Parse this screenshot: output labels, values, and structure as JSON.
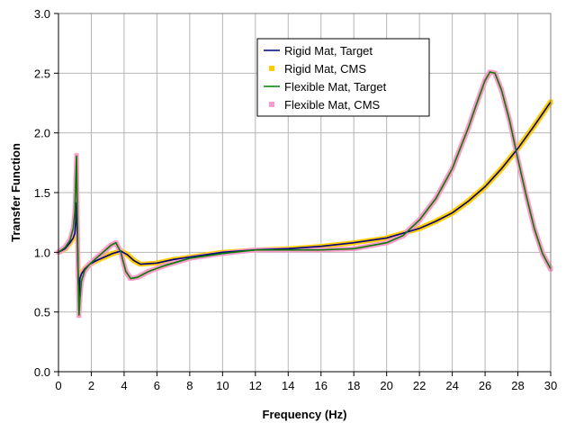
{
  "chart_data": {
    "type": "line",
    "title": "",
    "xlabel": "Frequency (Hz)",
    "ylabel": "Transfer Function",
    "xlim": [
      0,
      30
    ],
    "ylim": [
      0,
      3
    ],
    "xticks": [
      "0",
      "2",
      "4",
      "6",
      "8",
      "10",
      "12",
      "14",
      "16",
      "18",
      "20",
      "22",
      "24",
      "26",
      "28",
      "30"
    ],
    "yticks": [
      "0.0",
      "0.5",
      "1.0",
      "1.5",
      "2.0",
      "2.5",
      "3.0"
    ],
    "grid": true,
    "legend_position": "top-center",
    "series": [
      {
        "name": "Rigid Mat, Target",
        "style": "line",
        "color": "#000080",
        "x": [
          0,
          0.4,
          0.7,
          0.9,
          1.0,
          1.05,
          1.1,
          1.15,
          1.2,
          1.25,
          1.3,
          1.4,
          1.6,
          1.9,
          2.3,
          2.8,
          3.3,
          3.8,
          4.2,
          4.6,
          5,
          6,
          7,
          8,
          10,
          12,
          14,
          16,
          18,
          20,
          21,
          22,
          23,
          24,
          25,
          26,
          27,
          28,
          29,
          30
        ],
        "y": [
          1.0,
          1.03,
          1.08,
          1.12,
          1.16,
          1.25,
          1.42,
          1.15,
          0.8,
          0.6,
          0.78,
          0.82,
          0.86,
          0.9,
          0.93,
          0.96,
          0.99,
          1.01,
          0.98,
          0.93,
          0.9,
          0.91,
          0.94,
          0.96,
          1.0,
          1.02,
          1.03,
          1.05,
          1.08,
          1.12,
          1.16,
          1.2,
          1.26,
          1.33,
          1.43,
          1.55,
          1.7,
          1.87,
          2.06,
          2.26
        ]
      },
      {
        "name": "Rigid Mat, CMS",
        "style": "marker",
        "color": "#FFCC00",
        "x": [
          0,
          0.4,
          0.7,
          0.9,
          1.0,
          1.05,
          1.1,
          1.15,
          1.2,
          1.25,
          1.3,
          1.4,
          1.6,
          1.9,
          2.3,
          2.8,
          3.3,
          3.8,
          4.2,
          4.6,
          5,
          6,
          7,
          8,
          10,
          12,
          14,
          16,
          18,
          20,
          21,
          22,
          23,
          24,
          25,
          26,
          27,
          28,
          29,
          30
        ],
        "y": [
          1.0,
          1.03,
          1.08,
          1.12,
          1.16,
          1.25,
          1.42,
          1.15,
          0.8,
          0.6,
          0.78,
          0.82,
          0.86,
          0.9,
          0.93,
          0.96,
          0.99,
          1.01,
          0.98,
          0.93,
          0.9,
          0.91,
          0.94,
          0.96,
          1.0,
          1.02,
          1.03,
          1.05,
          1.08,
          1.12,
          1.16,
          1.2,
          1.26,
          1.33,
          1.43,
          1.55,
          1.7,
          1.87,
          2.06,
          2.26
        ]
      },
      {
        "name": "Flexible Mat, Target",
        "style": "line",
        "color": "#008000",
        "x": [
          0,
          0.4,
          0.7,
          0.9,
          1.0,
          1.05,
          1.1,
          1.15,
          1.2,
          1.25,
          1.3,
          1.4,
          1.6,
          1.9,
          2.3,
          2.8,
          3.2,
          3.5,
          3.8,
          4.1,
          4.4,
          4.8,
          5.5,
          6.5,
          8,
          10,
          12,
          14,
          16,
          18,
          20,
          21,
          22,
          23,
          24,
          25,
          25.5,
          26,
          26.3,
          26.6,
          27,
          27.5,
          28,
          28.5,
          29,
          29.5,
          30
        ],
        "y": [
          1.0,
          1.04,
          1.1,
          1.2,
          1.35,
          1.6,
          1.81,
          1.3,
          0.8,
          0.47,
          0.6,
          0.76,
          0.85,
          0.9,
          0.95,
          1.01,
          1.06,
          1.08,
          1.0,
          0.84,
          0.78,
          0.79,
          0.84,
          0.89,
          0.95,
          0.99,
          1.02,
          1.02,
          1.02,
          1.03,
          1.08,
          1.14,
          1.27,
          1.45,
          1.7,
          2.05,
          2.25,
          2.44,
          2.51,
          2.5,
          2.36,
          2.1,
          1.78,
          1.48,
          1.2,
          0.99,
          0.86
        ]
      },
      {
        "name": "Flexible Mat, CMS",
        "style": "marker",
        "color": "#FF99CC",
        "x": [
          0,
          0.4,
          0.7,
          0.9,
          1.0,
          1.05,
          1.1,
          1.15,
          1.2,
          1.25,
          1.3,
          1.4,
          1.6,
          1.9,
          2.3,
          2.8,
          3.2,
          3.5,
          3.8,
          4.1,
          4.4,
          4.8,
          5.5,
          6.5,
          8,
          10,
          12,
          14,
          16,
          18,
          20,
          21,
          22,
          23,
          24,
          25,
          25.5,
          26,
          26.3,
          26.6,
          27,
          27.5,
          28,
          28.5,
          29,
          29.5,
          30
        ],
        "y": [
          1.0,
          1.04,
          1.1,
          1.2,
          1.35,
          1.6,
          1.81,
          1.3,
          0.8,
          0.47,
          0.6,
          0.76,
          0.85,
          0.9,
          0.95,
          1.01,
          1.06,
          1.08,
          1.0,
          0.84,
          0.78,
          0.79,
          0.84,
          0.89,
          0.95,
          0.99,
          1.02,
          1.02,
          1.02,
          1.03,
          1.08,
          1.14,
          1.27,
          1.45,
          1.7,
          2.05,
          2.25,
          2.44,
          2.51,
          2.5,
          2.36,
          2.1,
          1.78,
          1.48,
          1.2,
          0.99,
          0.86
        ]
      }
    ]
  }
}
